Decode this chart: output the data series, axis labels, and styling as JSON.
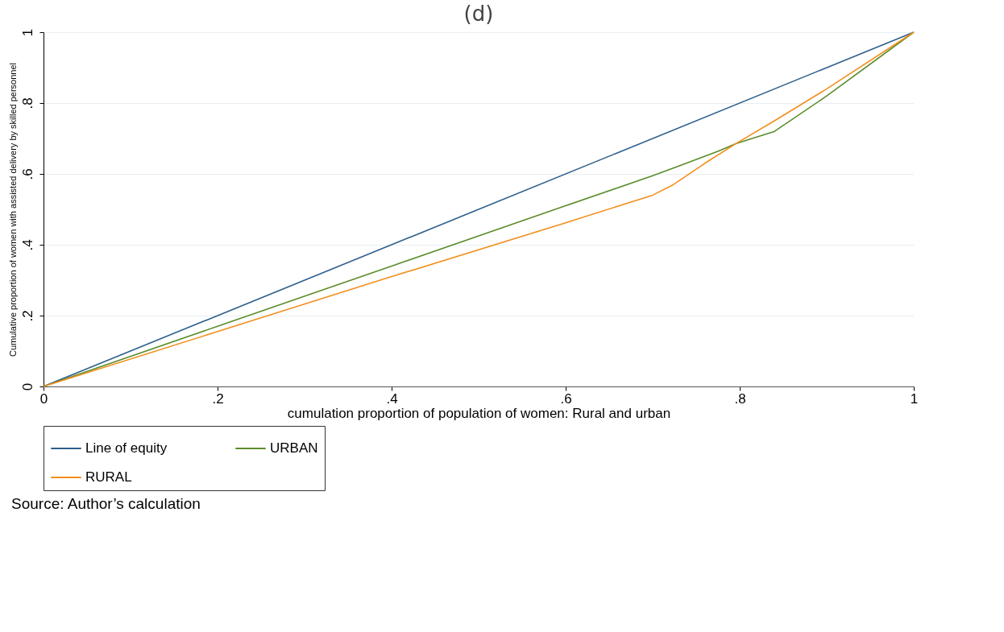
{
  "chart_data": {
    "type": "line",
    "title": "(d)",
    "xlabel": "cumulation proportion of population of women: Rural and urban",
    "ylabel": "Cumulative proportion of women with assisted delivery by skilled personnel",
    "xlim": [
      0,
      1
    ],
    "ylim": [
      0,
      1
    ],
    "xticks": [
      {
        "value": 0,
        "label": "0"
      },
      {
        "value": 0.2,
        "label": ".2"
      },
      {
        "value": 0.4,
        "label": ".4"
      },
      {
        "value": 0.6,
        "label": ".6"
      },
      {
        "value": 0.8,
        "label": ".8"
      },
      {
        "value": 1,
        "label": "1"
      }
    ],
    "yticks": [
      {
        "value": 0,
        "label": "0"
      },
      {
        "value": 0.2,
        "label": ".2"
      },
      {
        "value": 0.4,
        "label": ".4"
      },
      {
        "value": 0.6,
        "label": ".6"
      },
      {
        "value": 0.8,
        "label": ".8"
      },
      {
        "value": 1,
        "label": "1"
      }
    ],
    "grid": "y",
    "legend": "bottom",
    "line_style": "solid",
    "series": [
      {
        "name": "Line of equity",
        "color": "#2e5f8c",
        "x": [
          0,
          1
        ],
        "values": [
          0,
          1
        ]
      },
      {
        "name": "URBAN",
        "color": "#5b8c2a",
        "x": [
          0,
          0.2,
          0.4,
          0.6,
          0.7,
          0.73,
          0.776,
          0.796,
          0.84,
          0.9,
          1
        ],
        "values": [
          0,
          0.17,
          0.34,
          0.51,
          0.595,
          0.622,
          0.665,
          0.686,
          0.72,
          0.82,
          1
        ]
      },
      {
        "name": "RURAL",
        "color": "#f28e1c",
        "x": [
          0,
          0.2,
          0.4,
          0.6,
          0.7,
          0.724,
          0.76,
          0.796,
          0.84,
          0.9,
          1
        ],
        "values": [
          0,
          0.155,
          0.31,
          0.462,
          0.54,
          0.57,
          0.63,
          0.686,
          0.75,
          0.84,
          1
        ]
      }
    ],
    "annotations": [
      "Source:  Author’s calculation"
    ]
  }
}
